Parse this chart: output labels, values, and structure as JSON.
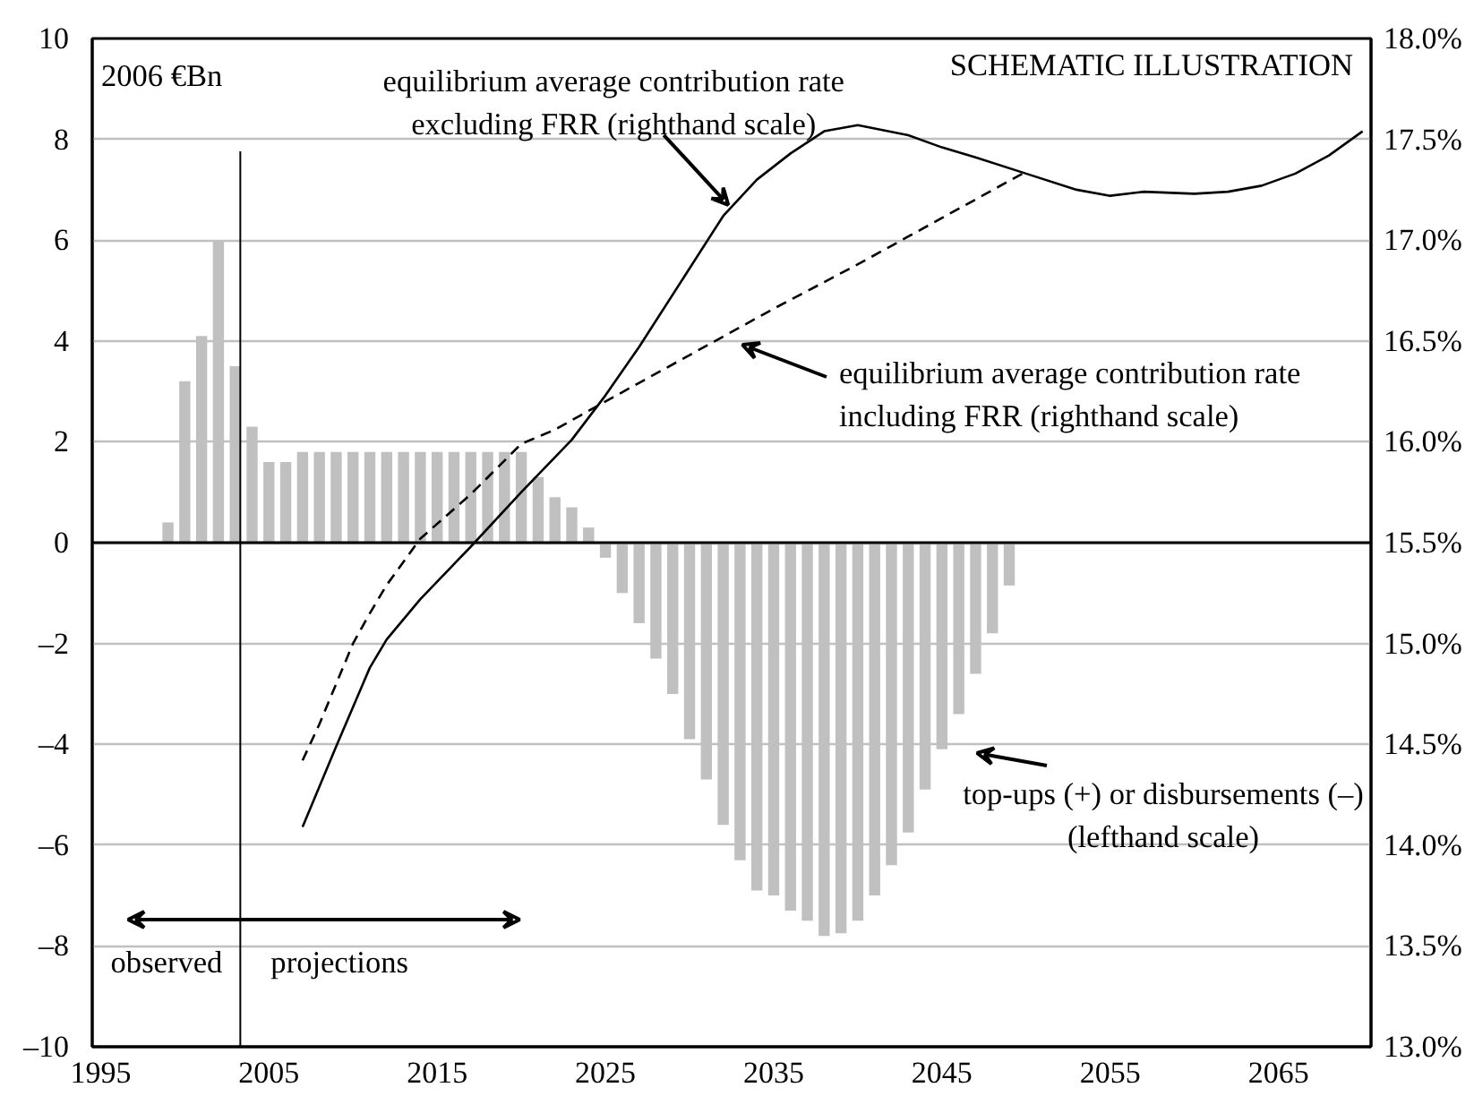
{
  "chart_data": {
    "type": "bar",
    "ylabel": "2006 €Bn",
    "x": [
      1999,
      2000,
      2001,
      2002,
      2003,
      2004,
      2005,
      2006,
      2007,
      2008,
      2009,
      2010,
      2011,
      2012,
      2013,
      2014,
      2015,
      2016,
      2017,
      2018,
      2019,
      2020,
      2021,
      2022,
      2023,
      2024,
      2025,
      2026,
      2027,
      2028,
      2029,
      2030,
      2031,
      2032,
      2033,
      2034,
      2035,
      2036,
      2037,
      2038,
      2039,
      2040,
      2041,
      2042,
      2043,
      2044,
      2045,
      2046,
      2047,
      2048,
      2049
    ],
    "xlim": [
      1994.5,
      2070.5
    ],
    "xticks": [
      1995,
      2005,
      2015,
      2025,
      2035,
      2045,
      2055,
      2065
    ],
    "ylim": [
      -10,
      10
    ],
    "yticks": [
      {
        "value": -10,
        "label": "–10"
      },
      {
        "value": -8,
        "label": "–8"
      },
      {
        "value": -6,
        "label": "–6"
      },
      {
        "value": -4,
        "label": "–4"
      },
      {
        "value": -2,
        "label": "–2"
      },
      0,
      2,
      4,
      6,
      8,
      10
    ],
    "y2lim": [
      13,
      18
    ],
    "y2ticks": [
      {
        "value": 13,
        "label": "13.0%"
      },
      {
        "value": 13.5,
        "label": "13.5%"
      },
      {
        "value": 14,
        "label": "14.0%"
      },
      {
        "value": 14.5,
        "label": "14.5%"
      },
      {
        "value": 15,
        "label": "15.0%"
      },
      {
        "value": 15.5,
        "label": "15.5%"
      },
      {
        "value": 16,
        "label": "16.0%"
      },
      {
        "value": 16.5,
        "label": "16.5%"
      },
      {
        "value": 17,
        "label": "17.0%"
      },
      {
        "value": 17.5,
        "label": "17.5%"
      },
      {
        "value": 18,
        "label": "18.0%"
      }
    ],
    "grid": "y",
    "series": [
      {
        "color": "#c0c0c0",
        "values": [
          0.4,
          3.2,
          4.1,
          6.0,
          3.5,
          2.3,
          1.6,
          1.6,
          1.8,
          1.8,
          1.8,
          1.8,
          1.8,
          1.8,
          1.8,
          1.8,
          1.8,
          1.8,
          1.8,
          1.8,
          1.8,
          1.8,
          1.3,
          0.9,
          0.7,
          0.3,
          -0.3,
          -1.0,
          -1.6,
          -2.3,
          -3.0,
          -3.9,
          -4.7,
          -5.6,
          -6.3,
          -6.9,
          -7.0,
          -7.3,
          -7.5,
          -7.8,
          -7.75,
          -7.5,
          -7.0,
          -6.4,
          -5.75,
          -4.9,
          -4.1,
          -3.4,
          -2.6,
          -1.8,
          -0.85
        ]
      },
      {
        "type": "line",
        "axis": "y2",
        "color": "#000000",
        "line_style": "solid",
        "x": [
          2007,
          2009,
          2011,
          2012,
          2014,
          2017,
          2020,
          2023,
          2025,
          2027,
          2030,
          2032,
          2034,
          2036,
          2038,
          2040,
          2043,
          2045,
          2047,
          2050,
          2053,
          2055,
          2057,
          2060,
          2062,
          2064,
          2066,
          2068,
          2070
        ],
        "values": [
          14.09,
          14.49,
          14.88,
          15.02,
          15.22,
          15.48,
          15.75,
          16.01,
          16.23,
          16.47,
          16.86,
          17.12,
          17.3,
          17.43,
          17.54,
          17.57,
          17.52,
          17.46,
          17.41,
          17.33,
          17.25,
          17.22,
          17.24,
          17.23,
          17.24,
          17.27,
          17.33,
          17.42,
          17.54
        ]
      },
      {
        "type": "line",
        "axis": "y2",
        "color": "#000000",
        "line_style": "dashed",
        "x": [
          2007,
          2008,
          2010,
          2011,
          2012,
          2014,
          2017,
          2020,
          2022,
          2025,
          2030,
          2035,
          2040,
          2045,
          2050
        ],
        "values": [
          14.42,
          14.6,
          15.0,
          15.15,
          15.29,
          15.52,
          15.74,
          15.99,
          16.06,
          16.2,
          16.43,
          16.66,
          16.88,
          17.11,
          17.34
        ]
      }
    ],
    "ref_lines": [
      {
        "axis": "y",
        "value": 0,
        "color": "#000000"
      },
      {
        "axis": "x",
        "value": 2003.3,
        "color": "#000000"
      }
    ],
    "annotations": [
      "SCHEMATIC ILLUSTRATION",
      {
        "text": "equilibrium average contribution rate\nexcluding FRR (righthand scale)",
        "x": 2032.3,
        "y": 6.7
      },
      "equilibrium average contribution rate\nincluding FRR (righthand scale)",
      "top-ups (+) or disbursements (–)\n(lefthand scale)",
      "observed",
      "projections"
    ]
  }
}
